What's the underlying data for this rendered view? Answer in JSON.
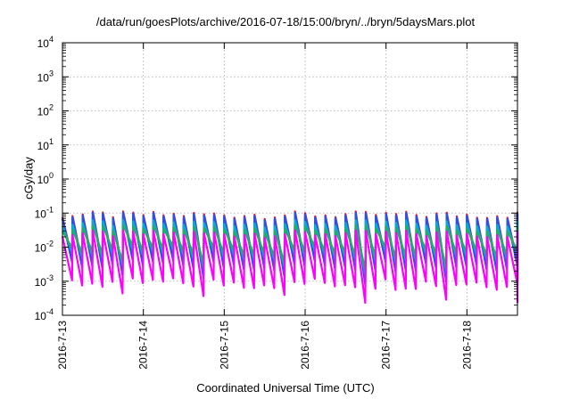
{
  "chart_data": {
    "type": "line",
    "title": "/data/run/goesPlots/archive/2016-07-18/15:00/bryn/../bryn/5daysMars.plot",
    "xlabel": "Coordinated Universal Time (UTC)",
    "ylabel": "cGy/day",
    "y_scale": "log",
    "ylim": [
      0.0001,
      10000
    ],
    "xlim": [
      "2016-07-13 00:00",
      "2016-07-18 15:00"
    ],
    "y_ticks": [
      {
        "base": "10",
        "exp": "-4",
        "value": 0.0001
      },
      {
        "base": "10",
        "exp": "-3",
        "value": 0.001
      },
      {
        "base": "10",
        "exp": "-2",
        "value": 0.01
      },
      {
        "base": "10",
        "exp": "-1",
        "value": 0.1
      },
      {
        "base": "10",
        "exp": "0",
        "value": 1
      },
      {
        "base": "10",
        "exp": "1",
        "value": 10
      },
      {
        "base": "10",
        "exp": "2",
        "value": 100
      },
      {
        "base": "10",
        "exp": "3",
        "value": 1000
      },
      {
        "base": "10",
        "exp": "4",
        "value": 10000
      }
    ],
    "x_ticks": [
      "2016-7-13",
      "2016-7-14",
      "2016-7-15",
      "2016-7-16",
      "2016-7-17",
      "2016-7-18"
    ],
    "grid": true,
    "legend": "none",
    "series": [
      {
        "color": "#e0201b",
        "peak": 0.09,
        "trough": 0.004
      },
      {
        "color": "#7b2fbe",
        "peak": 0.085,
        "trough": 0.0035
      },
      {
        "color": "#2255ee",
        "peak": 0.08,
        "trough": 0.003
      },
      {
        "color": "#00b0d0",
        "peak": 0.05,
        "trough": 0.006
      },
      {
        "color": "#20b060",
        "peak": 0.035,
        "trough": 0.008
      },
      {
        "color": "#ff00ff",
        "peak": 0.025,
        "trough": 0.0009
      }
    ],
    "oscillation": {
      "period_hours": 3,
      "description": "sawtooth"
    }
  }
}
